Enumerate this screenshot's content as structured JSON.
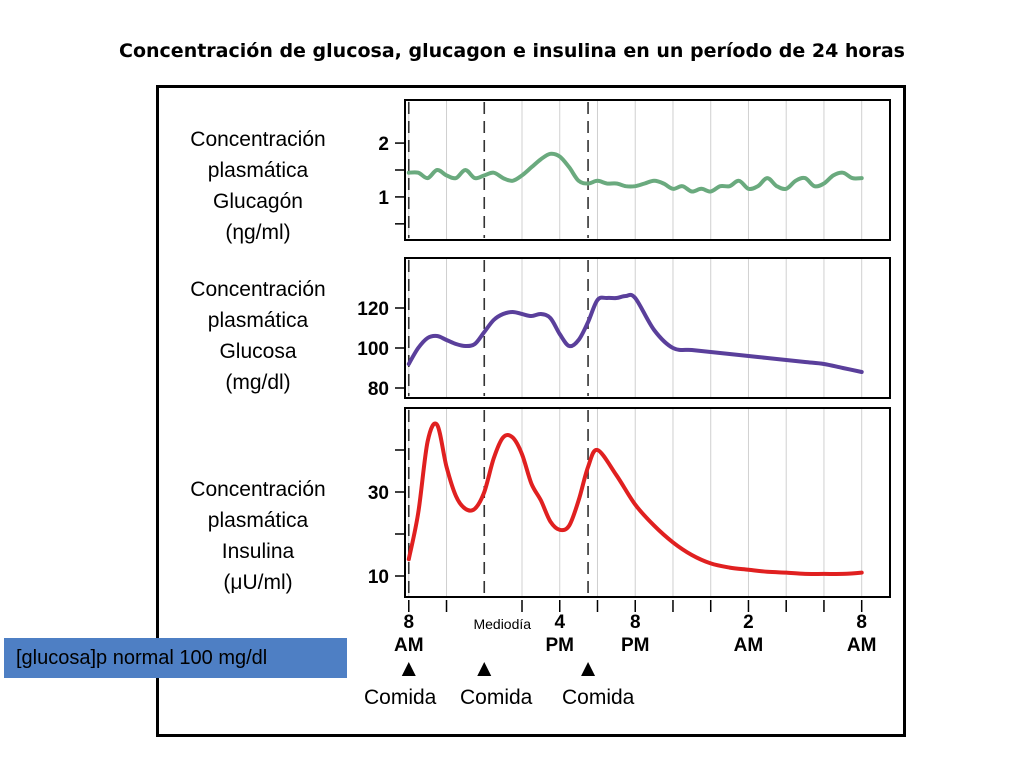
{
  "title": "Concentración de glucosa, glucagon e insulina en un período de 24 horas",
  "note": "[glucosa]p normal 100 mg/dl",
  "chart_data": [
    {
      "type": "line",
      "label_lines": [
        "Concentración",
        "plasmática",
        "Glucagón",
        "(ηg/ml)"
      ],
      "ylim": [
        0.2,
        2.8
      ],
      "yticks": [
        {
          "value": 1,
          "label": "1"
        },
        {
          "value": 2,
          "label": "2"
        }
      ],
      "minor_ticks": [
        0.5,
        1.5
      ],
      "grid": true,
      "color": "#6aaa7e",
      "x": [
        0,
        0.5,
        1,
        1.5,
        2,
        2.5,
        3,
        3.5,
        4,
        4.5,
        5,
        5.5,
        6,
        6.5,
        7,
        7.5,
        8,
        8.5,
        9,
        9.5,
        10,
        10.5,
        11,
        11.5,
        12,
        12.5,
        13,
        13.5,
        14,
        14.5,
        15,
        15.5,
        16,
        16.5,
        17,
        17.5,
        18,
        18.5,
        19,
        19.5,
        20,
        20.5,
        21,
        21.5,
        22,
        22.5,
        23,
        23.5,
        24
      ],
      "values": [
        1.45,
        1.45,
        1.35,
        1.5,
        1.4,
        1.35,
        1.5,
        1.35,
        1.4,
        1.45,
        1.35,
        1.3,
        1.4,
        1.55,
        1.7,
        1.8,
        1.75,
        1.55,
        1.3,
        1.25,
        1.3,
        1.25,
        1.25,
        1.2,
        1.2,
        1.25,
        1.3,
        1.25,
        1.15,
        1.2,
        1.1,
        1.15,
        1.1,
        1.2,
        1.2,
        1.3,
        1.15,
        1.2,
        1.35,
        1.2,
        1.15,
        1.3,
        1.35,
        1.2,
        1.25,
        1.4,
        1.45,
        1.35,
        1.35
      ]
    },
    {
      "type": "line",
      "label_lines": [
        "Concentración",
        "plasmática",
        "Glucosa",
        "(mg/dl)"
      ],
      "ylim": [
        75,
        145
      ],
      "yticks": [
        {
          "value": 80,
          "label": "80"
        },
        {
          "value": 100,
          "label": "100"
        },
        {
          "value": 120,
          "label": "120"
        }
      ],
      "grid": true,
      "color": "#5a3f9b",
      "x": [
        0,
        0.5,
        1,
        1.5,
        2,
        2.5,
        3,
        3.5,
        4,
        4.5,
        5,
        5.5,
        6,
        6.5,
        7,
        7.5,
        8,
        8.5,
        9,
        9.5,
        10,
        10.5,
        11,
        11.5,
        12,
        13,
        14,
        15,
        16,
        17,
        18,
        19,
        20,
        21,
        22,
        23,
        24
      ],
      "values": [
        92,
        100,
        105,
        106,
        104,
        102,
        101,
        102,
        108,
        114,
        117,
        118,
        117,
        116,
        117,
        115,
        107,
        101,
        104,
        113,
        124,
        125,
        125,
        126,
        125,
        109,
        100,
        99,
        98,
        97,
        96,
        95,
        94,
        93,
        92,
        90,
        88
      ]
    },
    {
      "type": "line",
      "label_lines": [
        "Concentración",
        "plasmática",
        "Insulina",
        "(μU/ml)"
      ],
      "ylim": [
        5,
        50
      ],
      "yticks": [
        {
          "value": 10,
          "label": "10"
        },
        {
          "value": 30,
          "label": "30"
        }
      ],
      "minor_ticks": [
        20,
        40
      ],
      "grid": true,
      "color": "#e02020",
      "x": [
        0,
        0.5,
        1,
        1.5,
        2,
        2.5,
        3,
        3.5,
        4,
        4.5,
        5,
        5.5,
        6,
        6.5,
        7,
        7.5,
        8,
        8.5,
        9,
        9.5,
        10,
        11,
        12,
        13,
        14,
        15,
        16,
        17,
        18,
        19,
        20,
        21,
        22,
        23,
        24
      ],
      "values": [
        14,
        25,
        42,
        46,
        36,
        29,
        26,
        26,
        30,
        38,
        43,
        43,
        39,
        32,
        28,
        23,
        21,
        22,
        28,
        36,
        40,
        34,
        27,
        22,
        18,
        15,
        13,
        12,
        11.5,
        11,
        10.8,
        10.5,
        10.5,
        10.5,
        10.8
      ]
    }
  ],
  "x_axis": {
    "xlim": [
      -0.2,
      25.5
    ],
    "major_ticks": [
      {
        "x": 0,
        "line1": "8",
        "line2": "AM"
      },
      {
        "x": 8,
        "line1": "4",
        "line2": "PM"
      },
      {
        "x": 12,
        "line1": "8",
        "line2": "PM"
      },
      {
        "x": 18,
        "line1": "2",
        "line2": "AM"
      },
      {
        "x": 24,
        "line1": "8",
        "line2": "AM"
      }
    ],
    "minor_ticks": [
      2,
      6,
      10,
      14,
      16,
      20,
      22
    ],
    "midday": {
      "x": 4,
      "label": "Mediodía"
    }
  },
  "meals": [
    {
      "x": 0,
      "label": "Comida"
    },
    {
      "x": 4,
      "label": "Comida"
    },
    {
      "x": 9.5,
      "label": "Comida"
    }
  ]
}
